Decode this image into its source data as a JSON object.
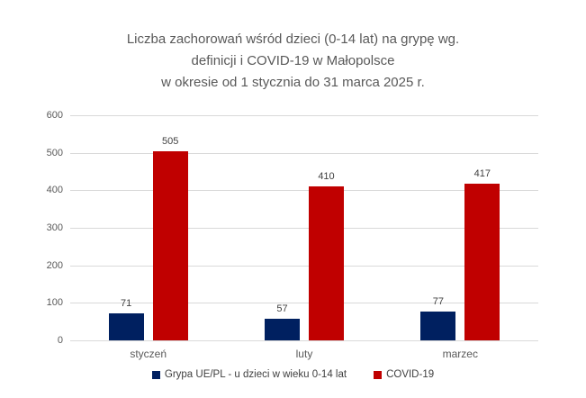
{
  "chart_data": {
    "type": "bar",
    "title_lines": [
      "Liczba zachorowań wśród dzieci (0-14 lat) na grypę wg.",
      "definicji i COVID-19 w Małopolsce",
      "w okresie od 1 stycznia do 31 marca 2025 r."
    ],
    "categories": [
      "styczeń",
      "luty",
      "marzec"
    ],
    "series": [
      {
        "name": "Grypa UE/PL - u dzieci w wieku 0-14 lat",
        "color": "#002060",
        "values": [
          71,
          57,
          77
        ]
      },
      {
        "name": "COVID-19",
        "color": "#C00000",
        "values": [
          505,
          410,
          417
        ]
      }
    ],
    "ylim": [
      0,
      600
    ],
    "yticks": [
      0,
      100,
      200,
      300,
      400,
      500,
      600
    ],
    "grid": true,
    "data_labels": true,
    "legend_position": "bottom"
  },
  "colors": {
    "gridline": "#D9D9D9",
    "axis_line": "#D9D9D9",
    "title_text": "#595959",
    "tick_text": "#595959",
    "data_label_text": "#404040",
    "background": "#FFFFFF"
  }
}
